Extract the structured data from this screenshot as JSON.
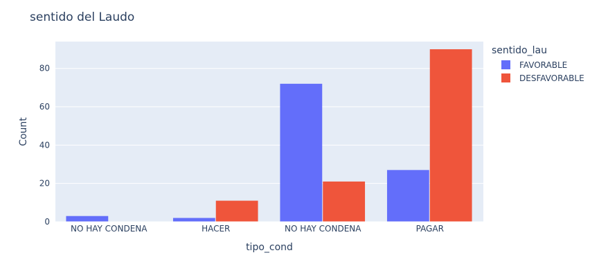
{
  "chart_data": {
    "type": "bar",
    "title": "sentido del Laudo",
    "xlabel": "tipo_cond",
    "ylabel": "Count",
    "categories": [
      "NO HAY CONDENA",
      "HACER",
      "NO HAY CONDENA",
      "PAGAR"
    ],
    "series": [
      {
        "name": "FAVORABLE",
        "color": "#636efa",
        "values": [
          3,
          2,
          72,
          27
        ]
      },
      {
        "name": "DESFAVORABLE",
        "color": "#ef553b",
        "values": [
          0,
          11,
          21,
          90
        ]
      }
    ],
    "ylim": [
      0,
      94
    ],
    "yticks": [
      0,
      20,
      40,
      60,
      80
    ],
    "grid": true,
    "legend": {
      "title": "sentido_lau",
      "placement": "right"
    },
    "colors": {
      "plot_bg": "#e5ecf6",
      "grid": "#ffffff",
      "text": "#2a3f5f"
    }
  }
}
